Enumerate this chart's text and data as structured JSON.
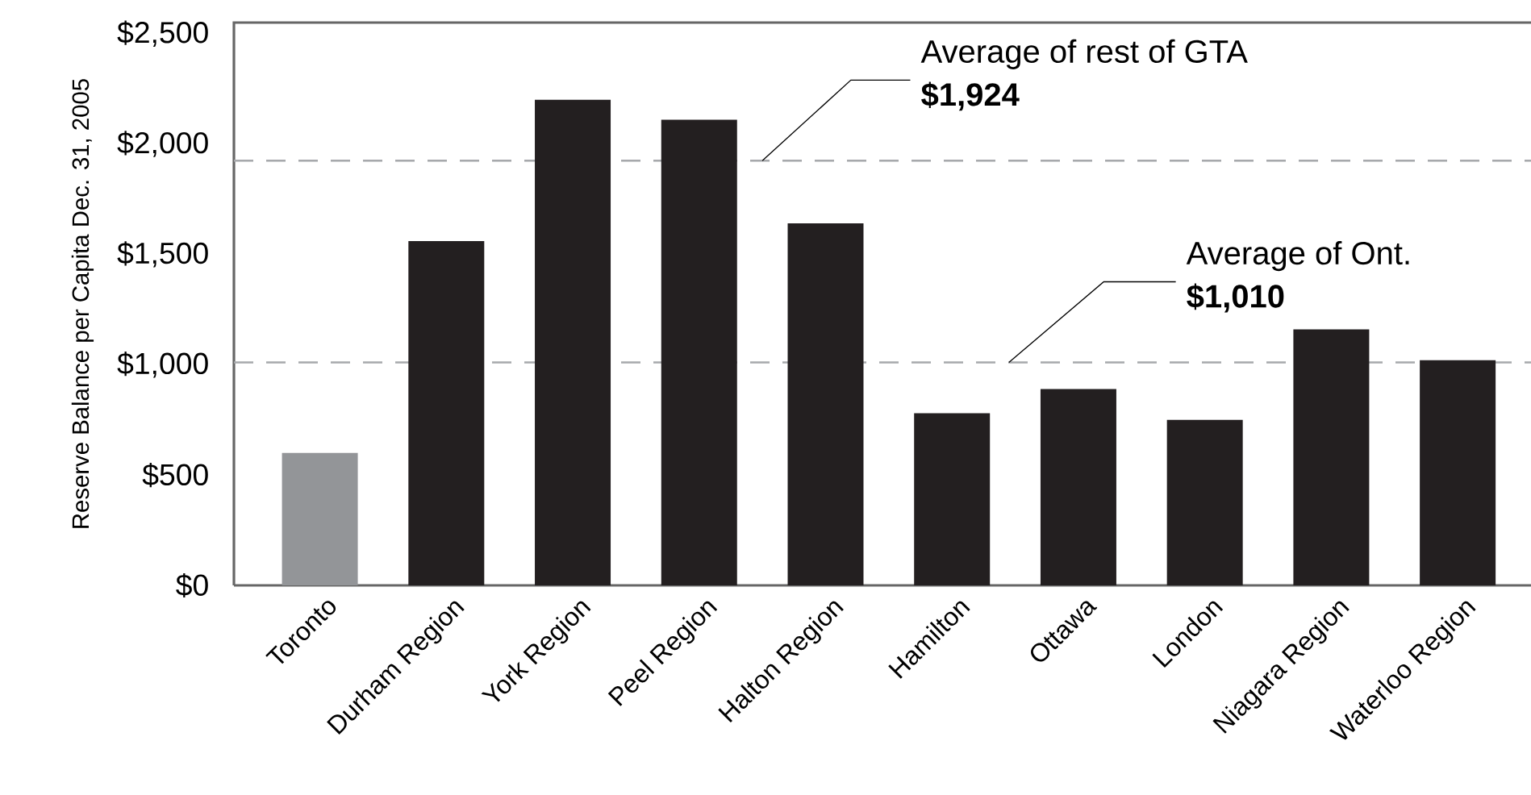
{
  "chart_data": {
    "type": "bar",
    "ylabel": "Reserve Balance per Capita Dec. 31, 2005",
    "categories": [
      "Toronto",
      "Durham Region",
      "York Region",
      "Peel Region",
      "Halton Region",
      "Hamilton",
      "Ottawa",
      "London",
      "Niagara Region",
      "Waterloo Region"
    ],
    "values": [
      600,
      1560,
      2200,
      2110,
      1640,
      780,
      890,
      750,
      1160,
      1020
    ],
    "colors": [
      "#939598",
      "#231f20",
      "#231f20",
      "#231f20",
      "#231f20",
      "#231f20",
      "#231f20",
      "#231f20",
      "#231f20",
      "#231f20"
    ],
    "ylim": [
      0,
      2550
    ],
    "yticks": [
      {
        "value": 0,
        "label": "$0"
      },
      {
        "value": 500,
        "label": "$500"
      },
      {
        "value": 1000,
        "label": "$1,000"
      },
      {
        "value": 1500,
        "label": "$1,500"
      },
      {
        "value": 2000,
        "label": "$2,000"
      },
      {
        "value": 2500,
        "label": "$2,500"
      }
    ],
    "ref_lines": [
      {
        "axis": "y",
        "value": 1924,
        "label": "Average of rest of GTA",
        "color": "#a7a9ac",
        "line_style": "dashed"
      },
      {
        "axis": "y",
        "value": 1010,
        "label": "Average of Ont.",
        "color": "#a7a9ac",
        "line_style": "dashed"
      }
    ],
    "annotations": [
      {
        "text": "$1,924",
        "y": 1924
      },
      {
        "text": "$1,010",
        "y": 1010
      }
    ]
  }
}
